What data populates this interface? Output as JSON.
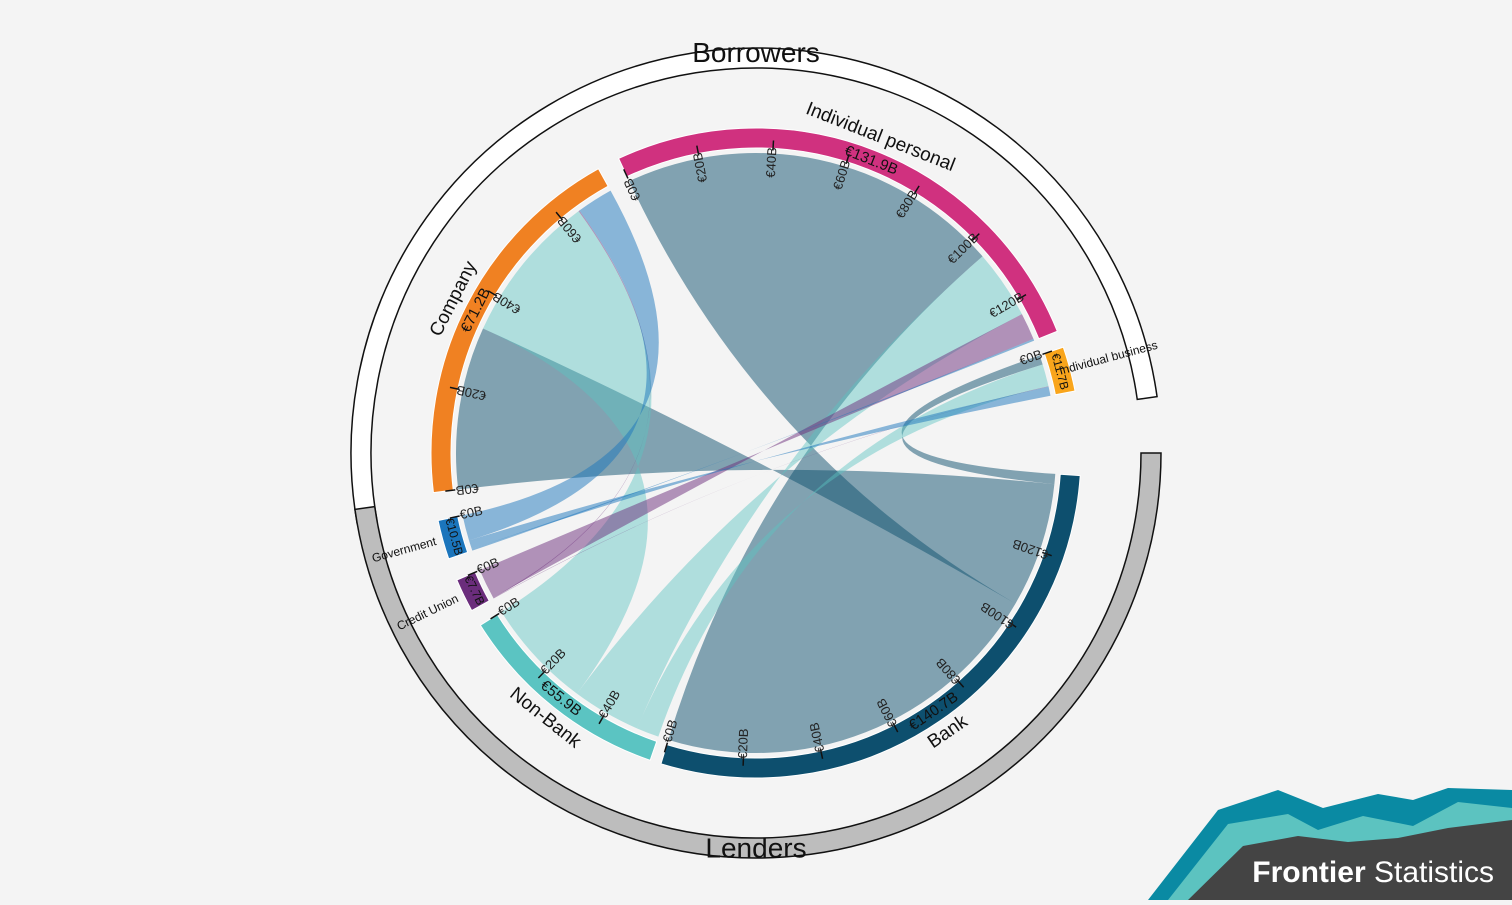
{
  "chart_data": {
    "type": "chord",
    "currency_unit": "€",
    "sections": [
      {
        "name": "Borrowers",
        "color": "#ffffff"
      },
      {
        "name": "Lenders",
        "color": "#bdbdbd"
      }
    ],
    "groups": [
      {
        "name": "Company",
        "section": "Borrowers",
        "total": 71.2,
        "total_label": "€71.2B",
        "color": "#f08122",
        "ticks": [
          "€0B",
          "€20B",
          "€40B",
          "€60B"
        ]
      },
      {
        "name": "Individual personal",
        "section": "Borrowers",
        "total": 131.9,
        "total_label": "€131.9B",
        "color": "#d0317f",
        "ticks": [
          "€0B",
          "€20B",
          "€40B",
          "€60B",
          "€80B",
          "€100B",
          "€120B"
        ]
      },
      {
        "name": "Individual business",
        "section": "Borrowers",
        "total": 11.7,
        "total_label": "€11.7B",
        "color": "#f9a51b",
        "ticks": [
          "€0B"
        ]
      },
      {
        "name": "Bank",
        "section": "Lenders",
        "total": 140.7,
        "total_label": "€140.7B",
        "color": "#0d4f6e",
        "ticks": [
          "€0B",
          "€20B",
          "€40B",
          "€60B",
          "€80B",
          "€100B",
          "€120B"
        ]
      },
      {
        "name": "Non-Bank",
        "section": "Lenders",
        "total": 55.9,
        "total_label": "€55.9B",
        "color": "#5bc4c2",
        "ticks": [
          "€0B",
          "€20B",
          "€40B"
        ]
      },
      {
        "name": "Credit Union",
        "section": "Lenders",
        "total": 7.7,
        "total_label": "€7.7B",
        "color": "#6b2d7c",
        "ticks": [
          "€0B"
        ]
      },
      {
        "name": "Government",
        "section": "Lenders",
        "total": 10.5,
        "total_label": "€10.5B",
        "color": "#1b75bc",
        "ticks": [
          "€0B"
        ]
      }
    ],
    "flows": [
      {
        "lender": "Bank",
        "borrower": "Individual personal",
        "value": 105.0
      },
      {
        "lender": "Bank",
        "borrower": "Company",
        "value": 33.0
      },
      {
        "lender": "Bank",
        "borrower": "Individual business",
        "value": 2.7
      },
      {
        "lender": "Non-Bank",
        "borrower": "Company",
        "value": 30.6
      },
      {
        "lender": "Non-Bank",
        "borrower": "Individual personal",
        "value": 19.0
      },
      {
        "lender": "Non-Bank",
        "borrower": "Individual business",
        "value": 6.3
      },
      {
        "lender": "Credit Union",
        "borrower": "Individual personal",
        "value": 7.4
      },
      {
        "lender": "Credit Union",
        "borrower": "Company",
        "value": 0.2
      },
      {
        "lender": "Credit Union",
        "borrower": "Individual business",
        "value": 0.1
      },
      {
        "lender": "Government",
        "borrower": "Company",
        "value": 7.4
      },
      {
        "lender": "Government",
        "borrower": "Individual business",
        "value": 2.6
      },
      {
        "lender": "Government",
        "borrower": "Individual personal",
        "value": 0.5
      }
    ]
  },
  "brand": {
    "bold": "Frontier",
    "regular": "Statistics"
  }
}
